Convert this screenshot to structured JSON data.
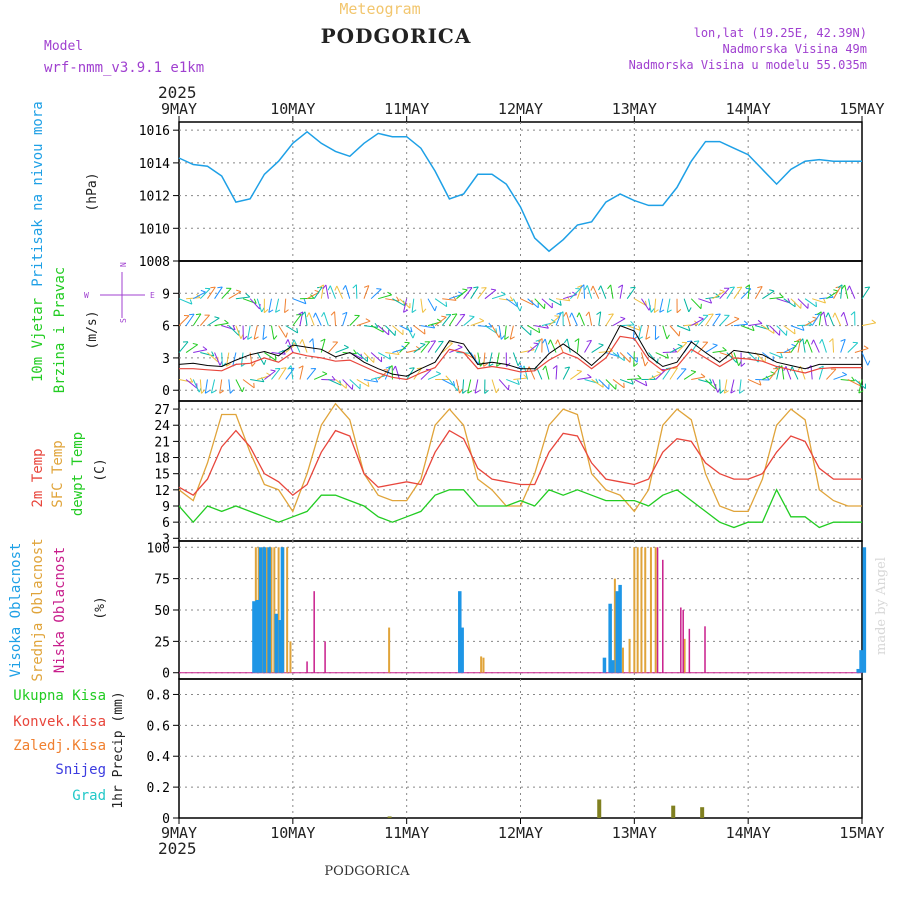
{
  "header": {
    "subtitle": "Meteogram",
    "title": "PODGORICA",
    "model_label": "Model",
    "model_name": "wrf-nmm_v3.9.1 e1km",
    "location_line1": "lon,lat (19.25E, 42.39N)",
    "location_line2": "Nadmorska Visina 49m",
    "location_line3": "Nadmorska Visina u modelu 55.035m",
    "year_top": "2025",
    "year_bottom": "2025",
    "footer_city": "PODGORICA",
    "credit": "made by Angel"
  },
  "x_axis": {
    "day_labels": [
      "9MAY",
      "10MAY",
      "11MAY",
      "12MAY",
      "13MAY",
      "14MAY",
      "15MAY"
    ]
  },
  "panels": {
    "pressure": {
      "label": "Pritisak na nivou mora",
      "unit": "(hPa)",
      "ticks": [
        "1008",
        "1010",
        "1012",
        "1014",
        "1016"
      ]
    },
    "wind": {
      "label1": "10m Vjetar",
      "label2": "Brzina i Pravac",
      "unit": "(m/s)",
      "ticks": [
        "0",
        "3",
        "6",
        "9"
      ],
      "compass_w": "W",
      "compass_e": "E",
      "compass_n": "N",
      "compass_s": "S"
    },
    "temp": {
      "label1": "2m Temp",
      "label2": "SFC Temp",
      "label3": "dewpt Temp",
      "unit": "(C)",
      "ticks": [
        "3",
        "6",
        "9",
        "12",
        "15",
        "18",
        "21",
        "24",
        "27"
      ]
    },
    "cloud": {
      "label1": "Visoka Oblacnost",
      "label2": "Srednja Oblacnost",
      "label3": "Niska Oblacnost",
      "unit": "(%)",
      "ticks": [
        "0",
        "25",
        "50",
        "75",
        "100"
      ]
    },
    "precip": {
      "label_total": "Ukupna Kisa",
      "label_conv": "Konvek.Kisa",
      "label_frz": "Zaledj.Kisa",
      "label_snow": "Snijeg",
      "label_grad": "Grad",
      "unit": "1hr Precip (mm)",
      "ticks": [
        "0",
        "0.2",
        "0.4",
        "0.6",
        "0.8"
      ]
    }
  },
  "colors": {
    "pressure": "#1ea0e6",
    "temp2m": "#e8463c",
    "sfc": "#e0a43a",
    "dewpt": "#22cc22",
    "high_cloud": "#1e96e6",
    "mid_cloud": "#e0a43a",
    "low_cloud": "#c81e8c",
    "precip": "#808020",
    "wind_speed": "#000000",
    "wind_gust": "#e8463c"
  },
  "chart_data": [
    {
      "type": "line",
      "name": "pressure",
      "x_hours": [
        0,
        3,
        6,
        9,
        12,
        15,
        18,
        21,
        24,
        27,
        30,
        33,
        36,
        39,
        42,
        45,
        48,
        51,
        54,
        57,
        60,
        63,
        66,
        69,
        72,
        75,
        78,
        81,
        84,
        87,
        90,
        93,
        96,
        99,
        102,
        105,
        108,
        111,
        114,
        117,
        120,
        123,
        126,
        129,
        132,
        135,
        138,
        141,
        144
      ],
      "values": [
        1014.3,
        1013.9,
        1013.8,
        1013.2,
        1011.6,
        1011.8,
        1013.3,
        1014.1,
        1015.2,
        1015.9,
        1015.2,
        1014.7,
        1014.4,
        1015.2,
        1015.8,
        1015.6,
        1015.6,
        1014.9,
        1013.5,
        1011.8,
        1012.1,
        1013.3,
        1013.3,
        1012.7,
        1011.3,
        1009.4,
        1008.6,
        1009.3,
        1010.2,
        1010.4,
        1011.6,
        1012.1,
        1011.7,
        1011.4,
        1011.4,
        1012.5,
        1014.1,
        1015.3,
        1015.3,
        1014.9,
        1014.5,
        1013.6,
        1012.7,
        1013.6,
        1014.1,
        1014.2,
        1014.1,
        1014.1,
        1014.1
      ],
      "ylim": [
        1008,
        1016.5
      ],
      "ylabel": "Pritisak na nivou mora"
    },
    {
      "type": "line",
      "name": "wind_speed",
      "x_hours": [
        0,
        3,
        6,
        9,
        12,
        15,
        18,
        21,
        24,
        27,
        30,
        33,
        36,
        39,
        42,
        45,
        48,
        51,
        54,
        57,
        60,
        63,
        66,
        69,
        72,
        75,
        78,
        81,
        84,
        87,
        90,
        93,
        96,
        99,
        102,
        105,
        108,
        111,
        114,
        117,
        120,
        123,
        126,
        129,
        132,
        135,
        138,
        141,
        144
      ],
      "values": [
        2.4,
        2.5,
        2.3,
        2.2,
        2.8,
        3.3,
        3.6,
        3.2,
        4.2,
        4.0,
        3.8,
        3.1,
        3.5,
        2.6,
        2.0,
        1.5,
        1.3,
        2.0,
        2.6,
        4.6,
        4.3,
        2.4,
        2.6,
        2.4,
        2.0,
        2.0,
        3.4,
        4.3,
        3.4,
        2.3,
        3.5,
        6.0,
        5.5,
        3.2,
        2.2,
        2.6,
        4.5,
        3.5,
        2.6,
        3.7,
        3.5,
        3.3,
        2.6,
        2.3,
        2.0,
        2.4,
        2.4,
        2.4,
        2.4
      ],
      "gusts": [
        2.0,
        2.0,
        1.9,
        1.8,
        2.4,
        2.5,
        3.0,
        2.6,
        3.5,
        3.2,
        3.0,
        2.7,
        2.8,
        2.2,
        1.6,
        1.2,
        1.0,
        1.6,
        2.1,
        3.8,
        3.5,
        2.0,
        2.2,
        2.0,
        1.7,
        1.8,
        2.8,
        3.5,
        3.0,
        2.0,
        3.0,
        5.0,
        4.8,
        2.8,
        1.8,
        2.2,
        3.8,
        3.0,
        2.2,
        3.0,
        2.9,
        2.7,
        2.2,
        1.9,
        1.6,
        2.0,
        2.1,
        2.1,
        2.1
      ],
      "ylim": [
        -1,
        12
      ]
    },
    {
      "type": "line",
      "name": "temperature",
      "x_hours": [
        0,
        3,
        6,
        9,
        12,
        15,
        18,
        21,
        24,
        27,
        30,
        33,
        36,
        39,
        42,
        45,
        48,
        51,
        54,
        57,
        60,
        63,
        66,
        69,
        72,
        75,
        78,
        81,
        84,
        87,
        90,
        93,
        96,
        99,
        102,
        105,
        108,
        111,
        114,
        117,
        120,
        123,
        126,
        129,
        132,
        135,
        138,
        141,
        144
      ],
      "temp2m": [
        12.5,
        11,
        14,
        20,
        23,
        20,
        15,
        13.5,
        11,
        13,
        19,
        23,
        22,
        15,
        12.5,
        13,
        13.5,
        13,
        19,
        23,
        21.5,
        16,
        14,
        13.5,
        13,
        13,
        19,
        22.5,
        22,
        17,
        14,
        13.5,
        13,
        14,
        19,
        21.5,
        21,
        17,
        15,
        14,
        14,
        15,
        19,
        22,
        21,
        16,
        14,
        14,
        14
      ],
      "sfc_temp": [
        12,
        10,
        17,
        26,
        26,
        19,
        13,
        12,
        8,
        15,
        24,
        28,
        25,
        15,
        11,
        10,
        10,
        14,
        24,
        27,
        24,
        14,
        12,
        9,
        9,
        15,
        24,
        27,
        26,
        15,
        12,
        11,
        8,
        12,
        24,
        27,
        25,
        15,
        9,
        8,
        8,
        14,
        24,
        27,
        25,
        12,
        10,
        9,
        9
      ],
      "dewpt": [
        9,
        6,
        9,
        8,
        9,
        8,
        7,
        6,
        7,
        8,
        11,
        11,
        10,
        9,
        7,
        6,
        7,
        8,
        11,
        12,
        12,
        9,
        9,
        9,
        10,
        9,
        12,
        11,
        12,
        11,
        10,
        10,
        10,
        9,
        11,
        12,
        10,
        8,
        6,
        5,
        6,
        6,
        12,
        7,
        7,
        5,
        6,
        6,
        6
      ],
      "ylim": [
        2.5,
        28.5
      ]
    },
    {
      "type": "bar",
      "name": "cloud",
      "high_cloud": [
        [
          15.8,
          57
        ],
        [
          16.5,
          58
        ],
        [
          17.2,
          100
        ],
        [
          18.0,
          100
        ],
        [
          19.0,
          100
        ],
        [
          20.5,
          47
        ],
        [
          21.3,
          42
        ],
        [
          21.8,
          100
        ],
        [
          59.2,
          65
        ],
        [
          59.7,
          36
        ],
        [
          89.7,
          12
        ],
        [
          90.9,
          55
        ],
        [
          91.5,
          10
        ],
        [
          92.4,
          65
        ],
        [
          93.0,
          70
        ],
        [
          143.2,
          3
        ],
        [
          143.8,
          18
        ],
        [
          144.5,
          100
        ]
      ],
      "mid_cloud": [
        [
          16.2,
          100
        ],
        [
          16.8,
          100
        ],
        [
          17.6,
          100
        ],
        [
          18.5,
          100
        ],
        [
          19.5,
          100
        ],
        [
          20.1,
          100
        ],
        [
          21.0,
          100
        ],
        [
          22.0,
          100
        ],
        [
          22.8,
          100
        ],
        [
          23.5,
          25
        ],
        [
          44.3,
          36
        ],
        [
          63.7,
          13
        ],
        [
          64.2,
          12
        ],
        [
          91.9,
          75
        ],
        [
          93.6,
          20
        ],
        [
          95.0,
          27
        ],
        [
          96.0,
          100
        ],
        [
          96.7,
          100
        ],
        [
          97.5,
          100
        ],
        [
          98.3,
          100
        ],
        [
          99.5,
          100
        ],
        [
          100.5,
          100
        ],
        [
          106.6,
          27
        ]
      ],
      "low_cloud": [
        [
          27.0,
          9
        ],
        [
          28.5,
          65
        ],
        [
          30.8,
          25
        ],
        [
          100.9,
          100
        ],
        [
          102.0,
          90
        ],
        [
          105.8,
          52
        ],
        [
          106.3,
          50
        ],
        [
          107.6,
          35
        ],
        [
          110.9,
          37
        ]
      ],
      "ylim": [
        -5,
        105
      ]
    },
    {
      "type": "bar",
      "name": "precip_1hr",
      "x_hours": [
        44.4,
        88.6,
        104.2,
        110.3
      ],
      "values": [
        0.01,
        0.12,
        0.08,
        0.07
      ],
      "ylim": [
        0,
        0.9
      ],
      "ylabel": "1hr Precip (mm)"
    }
  ]
}
